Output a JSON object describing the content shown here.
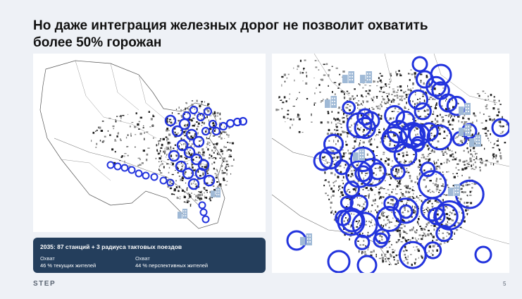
{
  "slide": {
    "title_line1": "Но даже интеграция железных дорог не позволит охватить",
    "title_line2": "более 50% горожан",
    "page_number": "5",
    "logo": "STEP"
  },
  "info_box": {
    "heading": "2035: 87 станций + 3 радиуса тактовых поездов",
    "left_label": "Охват",
    "left_value": "46 % текущих жителей",
    "right_label": "Охват",
    "right_value": "44 % перспективных жителей"
  },
  "colors": {
    "background": "#eef1f6",
    "coverage_outline": "#2233dd",
    "building_icon": "#9fb9d6",
    "info_box": "#243e5c"
  },
  "icons": [
    "building-icon",
    "step-logo"
  ]
}
